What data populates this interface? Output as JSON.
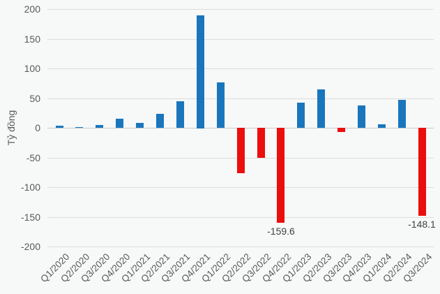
{
  "chart_data": {
    "type": "bar",
    "title": "",
    "xlabel": "",
    "ylabel": "Tỷ đồng",
    "ylim": [
      -200,
      200
    ],
    "yticks": [
      200,
      150,
      100,
      50,
      0,
      -50,
      -100,
      -150,
      -200
    ],
    "grid": true,
    "legend": "none",
    "categories": [
      "Q1/2020",
      "Q2/2020",
      "Q3/2020",
      "Q4/2020",
      "Q1/2021",
      "Q2/2021",
      "Q3/2021",
      "Q4/2021",
      "Q1/2022",
      "Q2/2022",
      "Q3/2022",
      "Q4/2022",
      "Q1/2023",
      "Q2/2023",
      "Q3/2023",
      "Q4/2023",
      "Q1/2024",
      "Q2/2024",
      "Q3/2024"
    ],
    "values": [
      3,
      1,
      5,
      15,
      8,
      23,
      45,
      190,
      77,
      -77,
      -50,
      -159.6,
      42,
      65,
      -7,
      38,
      6,
      47,
      -148.1
    ],
    "point_labels": [
      "",
      "",
      "",
      "",
      "",
      "",
      "",
      "",
      "",
      "",
      "",
      "-159.6",
      "",
      "",
      "",
      "",
      "",
      "",
      "-148.1"
    ],
    "colors": {
      "positive_bar": "#1976bd",
      "negative_bar": "#ec0d0d",
      "grid": "#dcdcdc",
      "zero_line": "#c9c9c9",
      "tick_text": "#595959",
      "data_label_text": "#404040",
      "background": "#f7f8f8"
    }
  }
}
